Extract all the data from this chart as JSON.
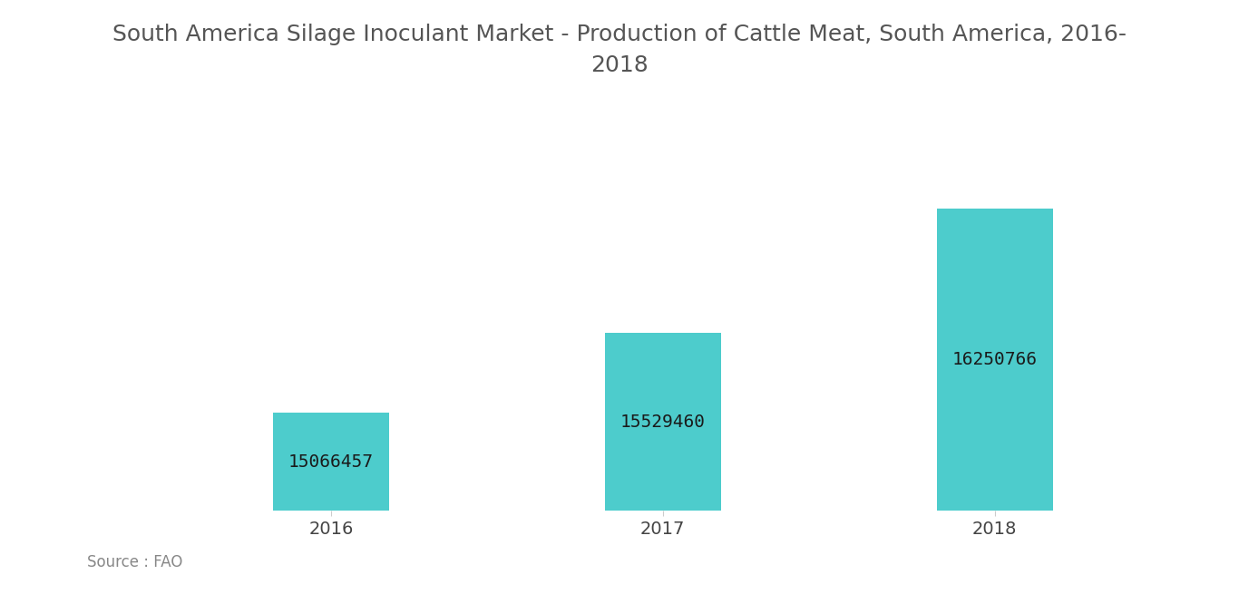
{
  "title": "South America Silage Inoculant Market - Production of Cattle Meat, South America, 2016-\n2018",
  "categories": [
    "2016",
    "2017",
    "2018"
  ],
  "values": [
    15066457,
    15529460,
    16250766
  ],
  "bar_color": "#4DCCCC",
  "label_color": "#1a1a1a",
  "title_color": "#555555",
  "source_text": "Source : FAO",
  "source_color": "#888888",
  "background_color": "#ffffff",
  "ylim_min": 14500000,
  "ylim_max": 16700000,
  "bar_label_fontsize": 14,
  "title_fontsize": 18,
  "xtick_fontsize": 14,
  "bar_width": 0.35
}
